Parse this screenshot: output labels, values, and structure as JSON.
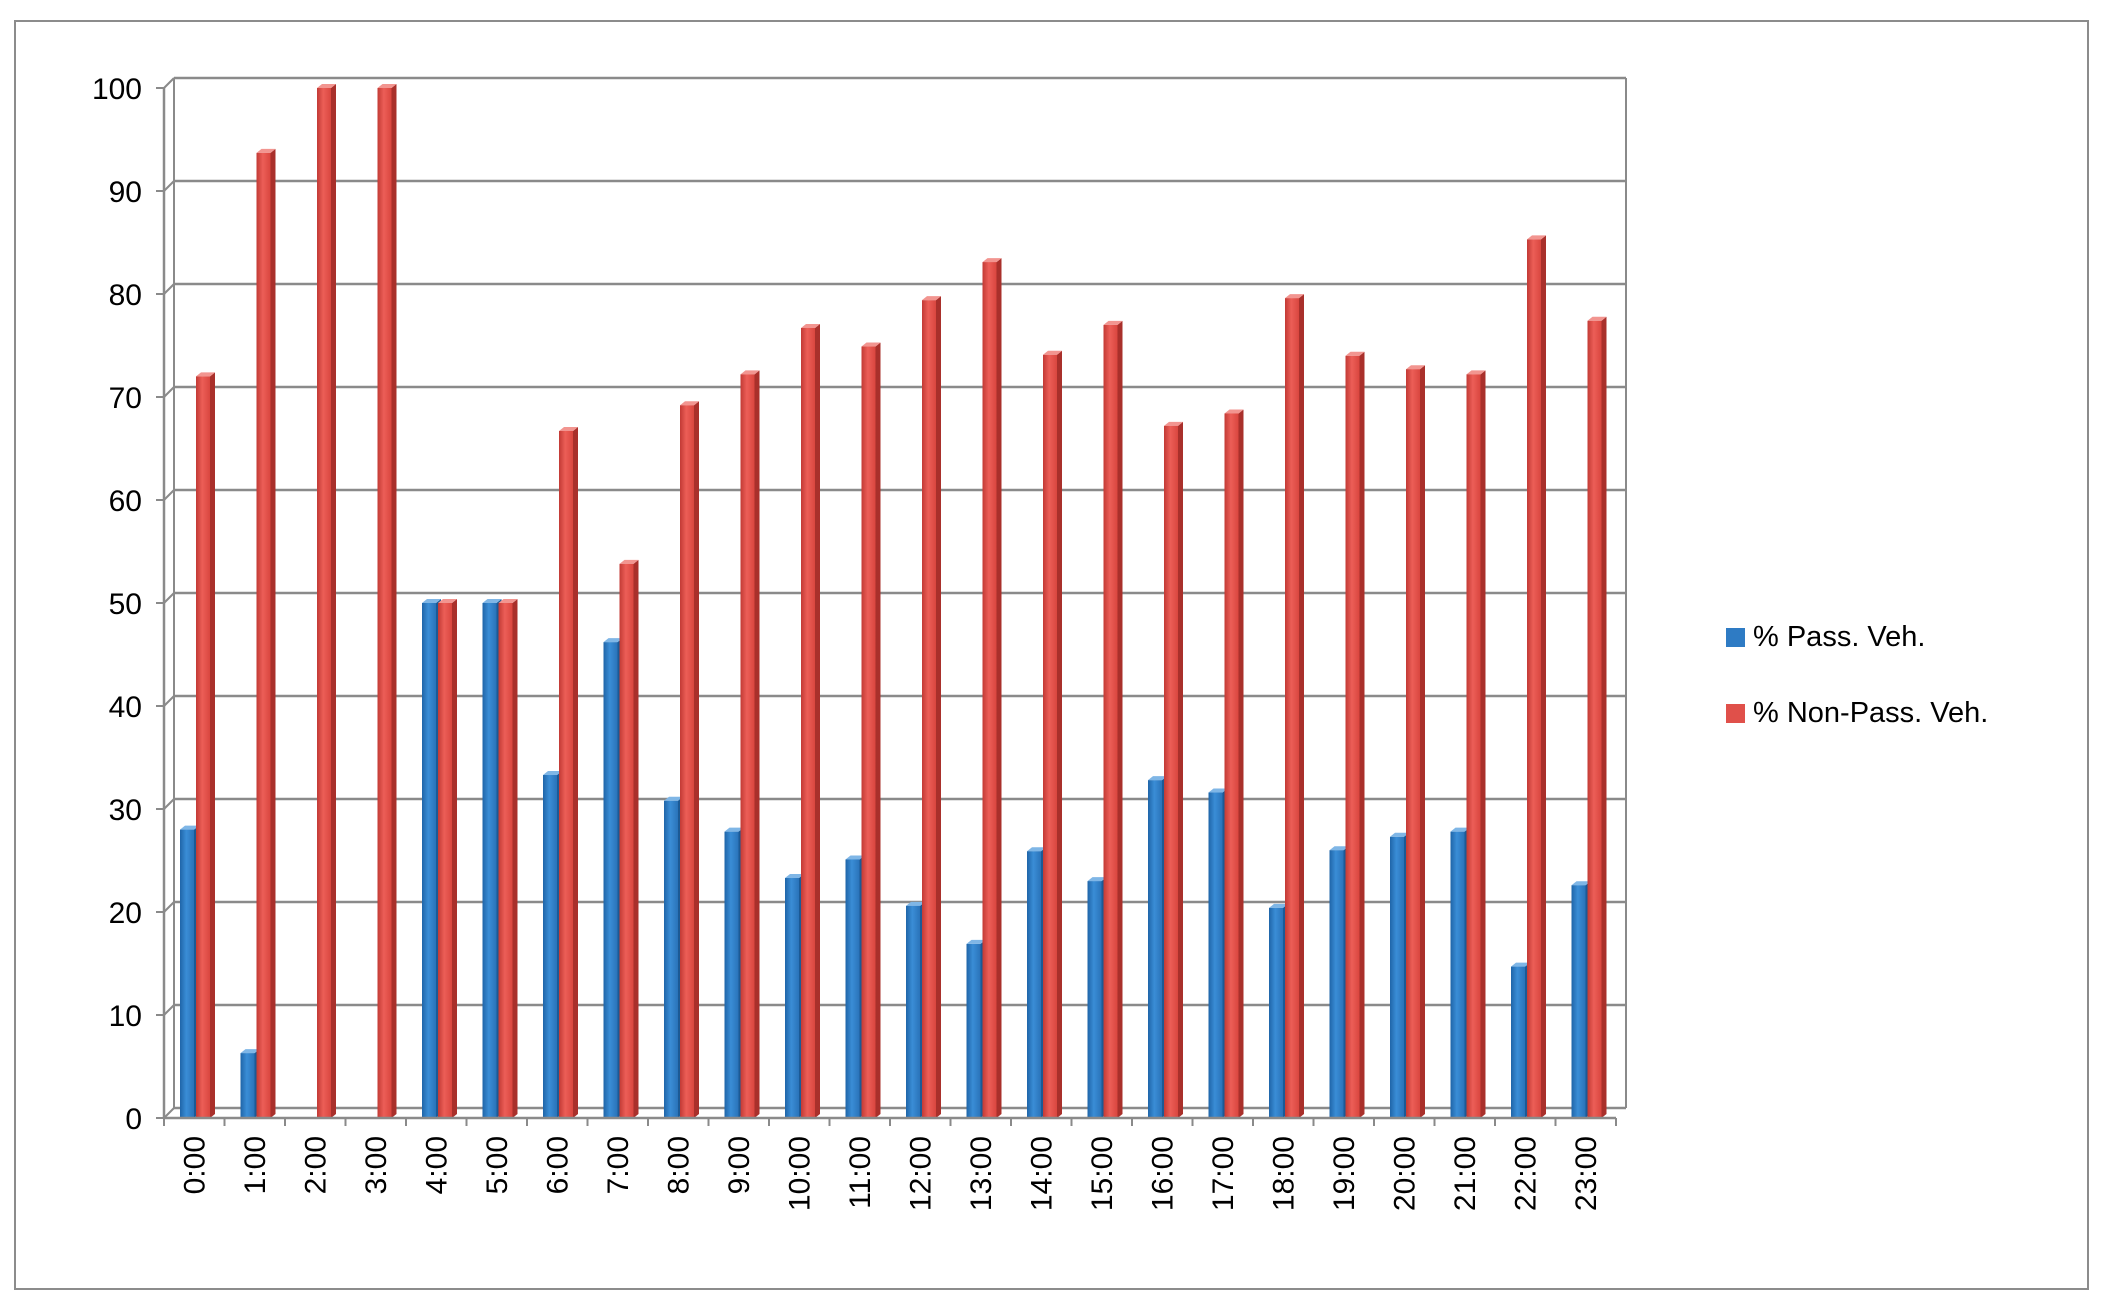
{
  "chart_data": {
    "type": "bar",
    "categories": [
      "0:00",
      "1:00",
      "2:00",
      "3:00",
      "4:00",
      "5:00",
      "6:00",
      "7:00",
      "8:00",
      "9:00",
      "10:00",
      "11:00",
      "12:00",
      "13:00",
      "14:00",
      "15:00",
      "16:00",
      "17:00",
      "18:00",
      "19:00",
      "20:00",
      "21:00",
      "22:00",
      "23:00"
    ],
    "series": [
      {
        "name": "% Pass. Veh.",
        "color": "#2e7bc4",
        "values": [
          28,
          6.3,
          0,
          0,
          50,
          50,
          33.3,
          46.2,
          30.8,
          27.8,
          23.3,
          25.1,
          20.6,
          16.9,
          25.9,
          23,
          32.8,
          31.6,
          20.4,
          26,
          27.3,
          27.8,
          14.7,
          22.6
        ]
      },
      {
        "name": "% Non-Pass. Veh.",
        "color": "#e0504a",
        "values": [
          72,
          93.7,
          100,
          100,
          50,
          50,
          66.7,
          53.8,
          69.2,
          72.2,
          76.7,
          74.9,
          79.4,
          83.1,
          74.1,
          77,
          67.2,
          68.4,
          79.6,
          74,
          72.7,
          72.2,
          85.3,
          77.4
        ]
      }
    ],
    "ylim": [
      0,
      100
    ],
    "yticks": [
      0,
      10,
      20,
      30,
      40,
      50,
      60,
      70,
      80,
      90,
      100
    ],
    "grid": true,
    "legend_position": "right",
    "title": "",
    "xlabel": "",
    "ylabel": ""
  }
}
